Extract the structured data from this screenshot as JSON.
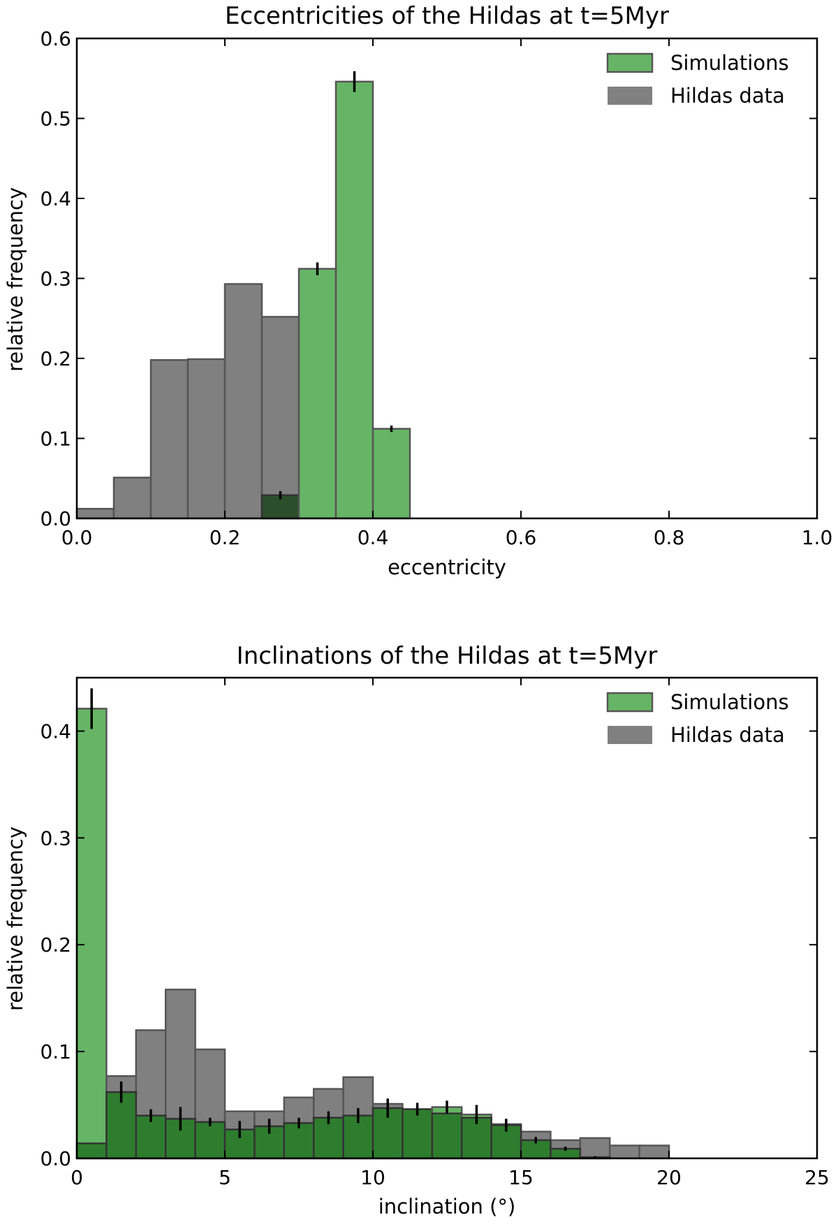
{
  "chart_data": [
    {
      "type": "bar",
      "title": "Eccentricities of the Hildas at t=5Myr",
      "xlabel": "eccentricity",
      "ylabel": "relative frequency",
      "xlim": [
        0,
        1.0
      ],
      "ylim": [
        0,
        0.6
      ],
      "xticks": [
        "0.0",
        "0.2",
        "0.4",
        "0.6",
        "0.8",
        "1.0"
      ],
      "yticks": [
        "0.0",
        "0.1",
        "0.2",
        "0.3",
        "0.4",
        "0.5",
        "0.6"
      ],
      "xtick_values": [
        0,
        0.2,
        0.4,
        0.6,
        0.8,
        1.0
      ],
      "ytick_values": [
        0,
        0.1,
        0.2,
        0.3,
        0.4,
        0.5,
        0.6
      ],
      "bin_edges": [
        0,
        0.05,
        0.1,
        0.15,
        0.2,
        0.25,
        0.3,
        0.35,
        0.4,
        0.45
      ],
      "legend_position": "top-right",
      "legend": [
        "Simulations",
        "Hildas data"
      ],
      "series": [
        {
          "name": "Hildas data",
          "color": "#808080",
          "values": [
            0.012,
            0.051,
            0.198,
            0.199,
            0.293,
            0.252,
            0,
            0,
            0
          ]
        },
        {
          "name": "Simulations",
          "color": "#66b566",
          "values": [
            0,
            0,
            0,
            0,
            0,
            0.029,
            0.312,
            0.546,
            0.112
          ],
          "errors": [
            0,
            0,
            0,
            0,
            0,
            0.005,
            0.008,
            0.013,
            0.004
          ]
        }
      ]
    },
    {
      "type": "bar",
      "title": "Inclinations of the Hildas at t=5Myr",
      "xlabel": "inclination (°)",
      "ylabel": "relative frequency",
      "xlim": [
        0,
        25
      ],
      "ylim": [
        0,
        0.45
      ],
      "xticks": [
        "0",
        "5",
        "10",
        "15",
        "20",
        "25"
      ],
      "yticks": [
        "0.0",
        "0.1",
        "0.2",
        "0.3",
        "0.4"
      ],
      "xtick_values": [
        0,
        5,
        10,
        15,
        20,
        25
      ],
      "ytick_values": [
        0,
        0.1,
        0.2,
        0.3,
        0.4
      ],
      "bin_edges": [
        0,
        1,
        2,
        3,
        4,
        5,
        6,
        7,
        8,
        9,
        10,
        11,
        12,
        13,
        14,
        15,
        16,
        17,
        18,
        19,
        20
      ],
      "legend_position": "top-right",
      "legend": [
        "Simulations",
        "Hildas data"
      ],
      "series": [
        {
          "name": "Hildas data",
          "color": "#808080",
          "values": [
            0.014,
            0.077,
            0.12,
            0.158,
            0.102,
            0.044,
            0.044,
            0.057,
            0.065,
            0.076,
            0.051,
            0.046,
            0.042,
            0.038,
            0.032,
            0.025,
            0.017,
            0.019,
            0.012,
            0.012
          ]
        },
        {
          "name": "Simulations",
          "color": "#66b566",
          "values": [
            0.421,
            0.062,
            0.04,
            0.037,
            0.034,
            0.027,
            0.03,
            0.033,
            0.038,
            0.04,
            0.047,
            0.046,
            0.048,
            0.041,
            0.031,
            0.017,
            0.009,
            0.001,
            0,
            0
          ],
          "errors": [
            0.019,
            0.01,
            0.006,
            0.011,
            0.004,
            0.008,
            0.007,
            0.005,
            0.006,
            0.007,
            0.009,
            0.006,
            0.006,
            0.009,
            0.006,
            0.003,
            0.002,
            0.001,
            0,
            0
          ]
        }
      ]
    }
  ]
}
